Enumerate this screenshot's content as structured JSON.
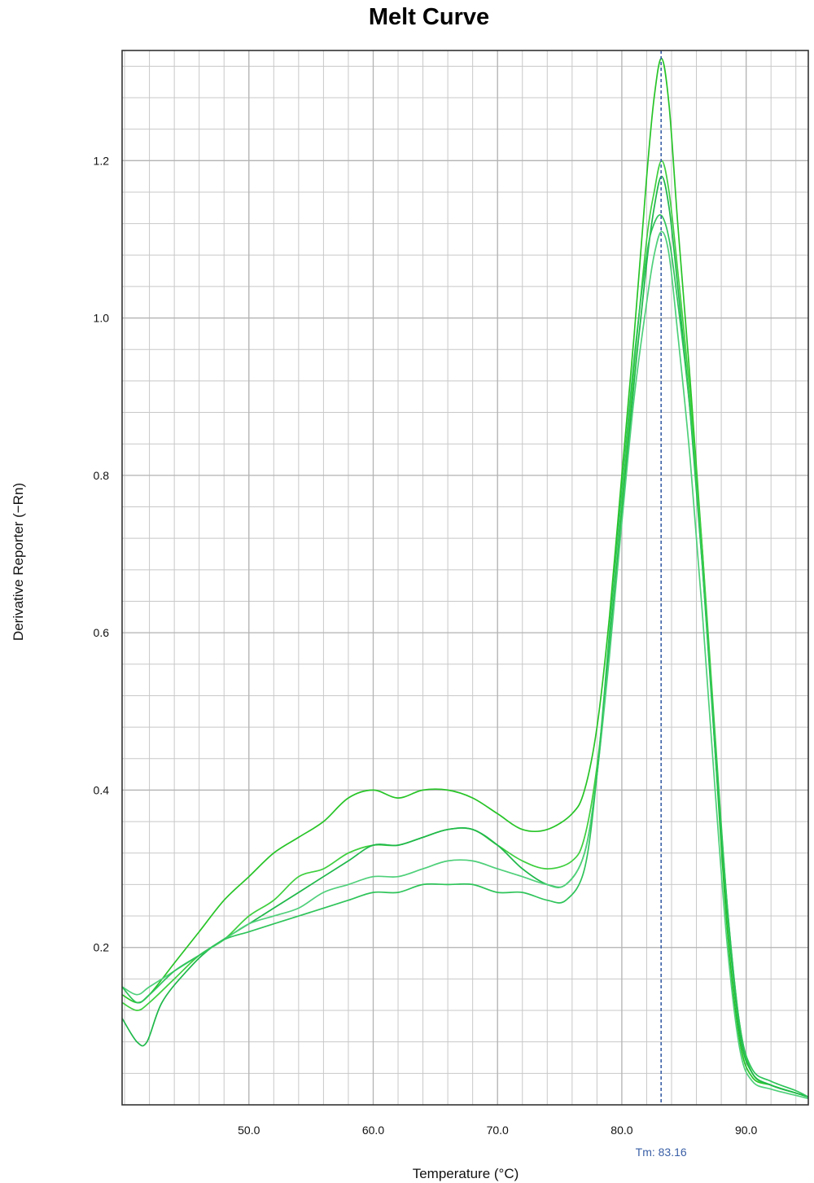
{
  "chart_data": {
    "type": "line",
    "title": "Melt Curve",
    "xlabel": "Temperature (°C)",
    "ylabel": "Derivative Reporter (−Rn)",
    "xlim": [
      39.8,
      95.0
    ],
    "ylim": [
      0.0,
      1.34
    ],
    "x_ticks": [
      "50.0",
      "60.0",
      "70.0",
      "80.0",
      "90.0"
    ],
    "y_ticks": [
      "0.2",
      "0.4",
      "0.6",
      "0.8",
      "1.0",
      "1.2"
    ],
    "grid": true,
    "legend": "none",
    "tm": {
      "value": 83.16,
      "label": "Tm: 83.16"
    },
    "colors": {
      "series": [
        "#27c427",
        "#3ecf3e",
        "#1fb84a",
        "#4fd07a",
        "#2fc45a"
      ],
      "tm_line": "#3a5fa6",
      "grid": "#c8c8c8",
      "frame": "#333333"
    },
    "series": [
      {
        "values": [
          [
            39.8,
            0.14
          ],
          [
            41.0,
            0.13
          ],
          [
            42.0,
            0.14
          ],
          [
            44.0,
            0.18
          ],
          [
            46.0,
            0.22
          ],
          [
            48.0,
            0.26
          ],
          [
            50.0,
            0.29
          ],
          [
            52.0,
            0.32
          ],
          [
            54.0,
            0.34
          ],
          [
            56.0,
            0.36
          ],
          [
            58.0,
            0.39
          ],
          [
            60.0,
            0.4
          ],
          [
            62.0,
            0.39
          ],
          [
            64.0,
            0.4
          ],
          [
            66.0,
            0.4
          ],
          [
            68.0,
            0.39
          ],
          [
            70.0,
            0.37
          ],
          [
            72.0,
            0.35
          ],
          [
            74.0,
            0.35
          ],
          [
            76.0,
            0.37
          ],
          [
            77.0,
            0.4
          ],
          [
            78.0,
            0.48
          ],
          [
            79.0,
            0.62
          ],
          [
            80.0,
            0.8
          ],
          [
            81.0,
            0.98
          ],
          [
            82.0,
            1.18
          ],
          [
            82.6,
            1.28
          ],
          [
            83.2,
            1.33
          ],
          [
            83.8,
            1.27
          ],
          [
            84.5,
            1.12
          ],
          [
            85.5,
            0.92
          ],
          [
            86.5,
            0.7
          ],
          [
            87.5,
            0.45
          ],
          [
            88.5,
            0.22
          ],
          [
            89.5,
            0.08
          ],
          [
            90.5,
            0.035
          ],
          [
            92.0,
            0.025
          ],
          [
            94.0,
            0.015
          ],
          [
            95.0,
            0.01
          ]
        ]
      },
      {
        "values": [
          [
            39.8,
            0.13
          ],
          [
            41.0,
            0.12
          ],
          [
            42.0,
            0.13
          ],
          [
            44.0,
            0.16
          ],
          [
            46.0,
            0.19
          ],
          [
            48.0,
            0.21
          ],
          [
            50.0,
            0.24
          ],
          [
            52.0,
            0.26
          ],
          [
            54.0,
            0.29
          ],
          [
            56.0,
            0.3
          ],
          [
            58.0,
            0.32
          ],
          [
            60.0,
            0.33
          ],
          [
            62.0,
            0.33
          ],
          [
            64.0,
            0.34
          ],
          [
            66.0,
            0.35
          ],
          [
            68.0,
            0.35
          ],
          [
            70.0,
            0.33
          ],
          [
            72.0,
            0.31
          ],
          [
            74.0,
            0.3
          ],
          [
            76.0,
            0.31
          ],
          [
            77.0,
            0.34
          ],
          [
            78.0,
            0.43
          ],
          [
            79.0,
            0.58
          ],
          [
            80.0,
            0.76
          ],
          [
            81.0,
            0.94
          ],
          [
            82.0,
            1.1
          ],
          [
            82.6,
            1.16
          ],
          [
            83.2,
            1.2
          ],
          [
            83.8,
            1.16
          ],
          [
            84.5,
            1.06
          ],
          [
            85.5,
            0.9
          ],
          [
            86.5,
            0.7
          ],
          [
            87.5,
            0.47
          ],
          [
            88.5,
            0.25
          ],
          [
            89.5,
            0.1
          ],
          [
            90.5,
            0.04
          ],
          [
            92.0,
            0.025
          ],
          [
            94.0,
            0.015
          ],
          [
            95.0,
            0.01
          ]
        ]
      },
      {
        "values": [
          [
            39.8,
            0.11
          ],
          [
            41.0,
            0.08
          ],
          [
            41.8,
            0.08
          ],
          [
            43.0,
            0.13
          ],
          [
            45.0,
            0.17
          ],
          [
            47.0,
            0.2
          ],
          [
            50.0,
            0.23
          ],
          [
            52.0,
            0.25
          ],
          [
            54.0,
            0.27
          ],
          [
            56.0,
            0.29
          ],
          [
            58.0,
            0.31
          ],
          [
            60.0,
            0.33
          ],
          [
            62.0,
            0.33
          ],
          [
            64.0,
            0.34
          ],
          [
            66.0,
            0.35
          ],
          [
            68.0,
            0.35
          ],
          [
            70.0,
            0.33
          ],
          [
            72.0,
            0.3
          ],
          [
            74.0,
            0.28
          ],
          [
            75.5,
            0.28
          ],
          [
            77.0,
            0.32
          ],
          [
            78.0,
            0.42
          ],
          [
            79.0,
            0.58
          ],
          [
            80.0,
            0.75
          ],
          [
            81.0,
            0.92
          ],
          [
            82.0,
            1.07
          ],
          [
            82.6,
            1.14
          ],
          [
            83.2,
            1.18
          ],
          [
            83.8,
            1.14
          ],
          [
            84.5,
            1.04
          ],
          [
            85.5,
            0.88
          ],
          [
            86.5,
            0.68
          ],
          [
            87.5,
            0.45
          ],
          [
            88.5,
            0.24
          ],
          [
            89.5,
            0.09
          ],
          [
            90.5,
            0.04
          ],
          [
            92.0,
            0.025
          ],
          [
            94.0,
            0.015
          ],
          [
            95.0,
            0.01
          ]
        ]
      },
      {
        "values": [
          [
            39.8,
            0.15
          ],
          [
            41.0,
            0.14
          ],
          [
            42.0,
            0.15
          ],
          [
            44.0,
            0.17
          ],
          [
            46.0,
            0.19
          ],
          [
            48.0,
            0.21
          ],
          [
            50.0,
            0.23
          ],
          [
            52.0,
            0.24
          ],
          [
            54.0,
            0.25
          ],
          [
            56.0,
            0.27
          ],
          [
            58.0,
            0.28
          ],
          [
            60.0,
            0.29
          ],
          [
            62.0,
            0.29
          ],
          [
            64.0,
            0.3
          ],
          [
            66.0,
            0.31
          ],
          [
            68.0,
            0.31
          ],
          [
            70.0,
            0.3
          ],
          [
            72.0,
            0.29
          ],
          [
            74.0,
            0.28
          ],
          [
            75.5,
            0.28
          ],
          [
            77.0,
            0.32
          ],
          [
            78.0,
            0.42
          ],
          [
            79.0,
            0.57
          ],
          [
            80.0,
            0.74
          ],
          [
            81.0,
            0.9
          ],
          [
            82.0,
            1.02
          ],
          [
            82.6,
            1.08
          ],
          [
            83.2,
            1.11
          ],
          [
            83.8,
            1.08
          ],
          [
            84.5,
            0.98
          ],
          [
            85.5,
            0.82
          ],
          [
            86.5,
            0.62
          ],
          [
            87.5,
            0.4
          ],
          [
            88.5,
            0.2
          ],
          [
            89.5,
            0.07
          ],
          [
            90.5,
            0.03
          ],
          [
            92.0,
            0.02
          ],
          [
            94.0,
            0.012
          ],
          [
            95.0,
            0.008
          ]
        ]
      },
      {
        "values": [
          [
            39.8,
            0.15
          ],
          [
            41.0,
            0.13
          ],
          [
            42.0,
            0.14
          ],
          [
            44.0,
            0.17
          ],
          [
            46.0,
            0.19
          ],
          [
            48.0,
            0.21
          ],
          [
            50.0,
            0.22
          ],
          [
            52.0,
            0.23
          ],
          [
            54.0,
            0.24
          ],
          [
            56.0,
            0.25
          ],
          [
            58.0,
            0.26
          ],
          [
            60.0,
            0.27
          ],
          [
            62.0,
            0.27
          ],
          [
            64.0,
            0.28
          ],
          [
            66.0,
            0.28
          ],
          [
            68.0,
            0.28
          ],
          [
            70.0,
            0.27
          ],
          [
            72.0,
            0.27
          ],
          [
            74.0,
            0.26
          ],
          [
            75.5,
            0.26
          ],
          [
            77.0,
            0.3
          ],
          [
            78.0,
            0.42
          ],
          [
            79.0,
            0.6
          ],
          [
            80.0,
            0.78
          ],
          [
            81.0,
            0.95
          ],
          [
            82.0,
            1.08
          ],
          [
            82.6,
            1.12
          ],
          [
            83.2,
            1.13
          ],
          [
            83.8,
            1.1
          ],
          [
            84.5,
            1.02
          ],
          [
            85.5,
            0.88
          ],
          [
            86.5,
            0.68
          ],
          [
            87.5,
            0.46
          ],
          [
            88.5,
            0.25
          ],
          [
            89.5,
            0.1
          ],
          [
            90.5,
            0.045
          ],
          [
            92.0,
            0.03
          ],
          [
            94.0,
            0.018
          ],
          [
            95.0,
            0.01
          ]
        ]
      }
    ]
  }
}
